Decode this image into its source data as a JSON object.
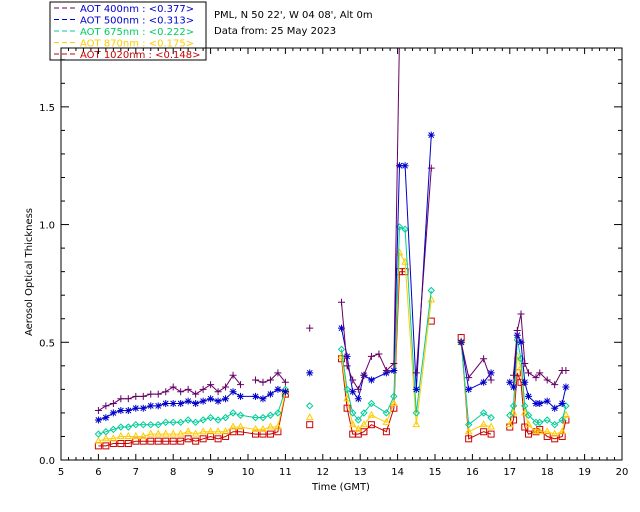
{
  "chart_data": {
    "type": "line",
    "title_lines": [
      "PML, N 50 22', W 04 08', Alt 0m",
      "Data from: 25 May 2023"
    ],
    "xlabel": "Time (GMT)",
    "ylabel": "Aerosol Optical Thickness",
    "xlim": [
      5,
      20
    ],
    "ylim": [
      0.0,
      1.75
    ],
    "x_ticks": [
      "5",
      "6",
      "7",
      "8",
      "9",
      "10",
      "11",
      "12",
      "13",
      "14",
      "15",
      "16",
      "17",
      "18",
      "19",
      "20"
    ],
    "y_ticks": [
      "0.0",
      "0.5",
      "1.0",
      "1.5"
    ],
    "legend_placement": "top-left, outside plot",
    "series": [
      {
        "name": "AOT  400nm",
        "mean": "<0.377>",
        "color": "#660066",
        "text_color": "#0000cc",
        "marker": "plus",
        "x": [
          6.0,
          6.2,
          6.4,
          6.6,
          6.8,
          7.0,
          7.2,
          7.4,
          7.6,
          7.8,
          8.0,
          8.2,
          8.4,
          8.6,
          8.8,
          9.0,
          9.2,
          9.4,
          9.6,
          9.8,
          10.0,
          10.2,
          10.4,
          10.6,
          10.8,
          11.0,
          11.65,
          12.5,
          12.65,
          12.8,
          12.95,
          13.1,
          13.3,
          13.5,
          13.7,
          13.9,
          14.05,
          14.2,
          14.5,
          14.9,
          15.7,
          15.9,
          16.3,
          16.5,
          17.0,
          17.1,
          17.2,
          17.3,
          17.4,
          17.5,
          17.7,
          17.8,
          18.0,
          18.2,
          18.4,
          18.5
        ],
        "y": [
          0.21,
          0.23,
          0.24,
          0.26,
          0.26,
          0.27,
          0.27,
          0.28,
          0.28,
          0.29,
          0.31,
          0.29,
          0.3,
          0.28,
          0.3,
          0.32,
          0.29,
          0.31,
          0.36,
          0.32,
          null,
          0.34,
          0.33,
          0.34,
          0.37,
          0.33,
          0.56,
          0.67,
          0.4,
          0.34,
          0.3,
          0.36,
          0.44,
          0.45,
          0.38,
          0.41,
          1.8,
          null,
          0.37,
          1.24,
          0.5,
          0.35,
          0.43,
          0.34,
          null,
          0.36,
          0.55,
          0.62,
          0.41,
          0.37,
          0.35,
          0.37,
          0.34,
          0.32,
          0.38,
          0.38
        ]
      },
      {
        "name": "AOT  500nm",
        "mean": "<0.313>",
        "color": "#0000cc",
        "text_color": "#0000cc",
        "marker": "asterisk",
        "x": [
          6.0,
          6.2,
          6.4,
          6.6,
          6.8,
          7.0,
          7.2,
          7.4,
          7.6,
          7.8,
          8.0,
          8.2,
          8.4,
          8.6,
          8.8,
          9.0,
          9.2,
          9.4,
          9.6,
          9.8,
          10.2,
          10.4,
          10.6,
          10.8,
          11.0,
          11.65,
          12.5,
          12.65,
          12.8,
          12.95,
          13.1,
          13.3,
          13.7,
          13.9,
          14.05,
          14.2,
          14.5,
          14.9,
          15.7,
          15.9,
          16.3,
          16.5,
          17.0,
          17.1,
          17.2,
          17.3,
          17.4,
          17.5,
          17.7,
          17.8,
          18.0,
          18.2,
          18.4,
          18.5
        ],
        "y": [
          0.17,
          0.18,
          0.2,
          0.21,
          0.21,
          0.22,
          0.22,
          0.23,
          0.23,
          0.24,
          0.24,
          0.24,
          0.25,
          0.24,
          0.25,
          0.26,
          0.25,
          0.26,
          0.29,
          0.27,
          0.27,
          0.26,
          0.28,
          0.3,
          0.29,
          0.37,
          0.56,
          0.44,
          0.29,
          0.26,
          0.36,
          0.34,
          0.37,
          0.38,
          1.25,
          1.25,
          0.3,
          1.38,
          0.5,
          0.3,
          0.33,
          0.37,
          0.33,
          0.31,
          0.53,
          0.5,
          0.33,
          0.27,
          0.24,
          0.24,
          0.25,
          0.22,
          0.24,
          0.31
        ]
      },
      {
        "name": "AOT  675nm",
        "mean": "<0.222>",
        "color": "#00cc99",
        "text_color": "#00cc66",
        "marker": "diamond",
        "x": [
          6.0,
          6.2,
          6.4,
          6.6,
          6.8,
          7.0,
          7.2,
          7.4,
          7.6,
          7.8,
          8.0,
          8.2,
          8.4,
          8.6,
          8.8,
          9.0,
          9.2,
          9.4,
          9.6,
          9.8,
          10.2,
          10.4,
          10.6,
          10.8,
          11.0,
          11.65,
          12.5,
          12.65,
          12.8,
          12.95,
          13.1,
          13.3,
          13.7,
          13.9,
          14.05,
          14.2,
          14.5,
          14.9,
          15.7,
          15.9,
          16.3,
          16.5,
          17.0,
          17.1,
          17.2,
          17.3,
          17.4,
          17.5,
          17.7,
          17.8,
          18.0,
          18.2,
          18.4,
          18.5
        ],
        "y": [
          0.11,
          0.12,
          0.13,
          0.14,
          0.14,
          0.15,
          0.15,
          0.15,
          0.15,
          0.16,
          0.16,
          0.16,
          0.17,
          0.16,
          0.17,
          0.18,
          0.17,
          0.18,
          0.2,
          0.19,
          0.18,
          0.18,
          0.19,
          0.2,
          0.3,
          0.23,
          0.47,
          0.3,
          0.2,
          0.17,
          0.2,
          0.24,
          0.2,
          0.27,
          0.99,
          0.98,
          0.2,
          0.72,
          0.5,
          0.15,
          0.2,
          0.18,
          0.19,
          0.23,
          0.51,
          0.43,
          0.23,
          0.19,
          0.16,
          0.16,
          0.17,
          0.15,
          0.17,
          0.23
        ]
      },
      {
        "name": "AOT  870nm",
        "mean": "<0.175>",
        "color": "#ffcc00",
        "text_color": "#ffcc00",
        "marker": "triangle",
        "x": [
          6.0,
          6.2,
          6.4,
          6.6,
          6.8,
          7.0,
          7.2,
          7.4,
          7.6,
          7.8,
          8.0,
          8.2,
          8.4,
          8.6,
          8.8,
          9.0,
          9.2,
          9.4,
          9.6,
          9.8,
          10.2,
          10.4,
          10.6,
          10.8,
          11.0,
          11.65,
          12.5,
          12.65,
          12.8,
          12.95,
          13.1,
          13.3,
          13.7,
          13.9,
          14.05,
          14.2,
          14.5,
          14.9,
          15.7,
          15.9,
          16.3,
          16.5,
          17.0,
          17.1,
          17.2,
          17.3,
          17.4,
          17.5,
          17.7,
          17.8,
          18.0,
          18.2,
          18.4,
          18.5
        ],
        "y": [
          0.08,
          0.09,
          0.09,
          0.1,
          0.1,
          0.1,
          0.1,
          0.11,
          0.11,
          0.11,
          0.11,
          0.11,
          0.12,
          0.11,
          0.12,
          0.12,
          0.12,
          0.12,
          0.14,
          0.14,
          0.13,
          0.13,
          0.14,
          0.14,
          0.29,
          0.18,
          0.44,
          0.26,
          0.15,
          0.13,
          0.15,
          0.19,
          0.16,
          0.24,
          0.88,
          0.84,
          0.15,
          0.68,
          0.5,
          0.12,
          0.15,
          0.14,
          0.15,
          0.2,
          0.44,
          0.39,
          0.2,
          0.15,
          0.12,
          0.12,
          0.12,
          0.11,
          0.12,
          0.19
        ]
      },
      {
        "name": "AOT 1020nm",
        "mean": "<0.148>",
        "color": "#cc0000",
        "text_color": "#cc0000",
        "marker": "square",
        "x": [
          6.0,
          6.2,
          6.4,
          6.6,
          6.8,
          7.0,
          7.2,
          7.4,
          7.6,
          7.8,
          8.0,
          8.2,
          8.4,
          8.6,
          8.8,
          9.0,
          9.2,
          9.4,
          9.6,
          9.8,
          10.2,
          10.4,
          10.6,
          10.8,
          11.0,
          11.65,
          12.5,
          12.65,
          12.8,
          12.95,
          13.1,
          13.3,
          13.7,
          13.9,
          14.05,
          14.2,
          14.9,
          15.7,
          15.9,
          16.3,
          16.5,
          17.0,
          17.1,
          17.2,
          17.3,
          17.4,
          17.5,
          17.7,
          17.8,
          18.0,
          18.2,
          18.4,
          18.5
        ],
        "y": [
          0.06,
          0.06,
          0.07,
          0.07,
          0.07,
          0.08,
          0.08,
          0.08,
          0.08,
          0.08,
          0.08,
          0.08,
          0.09,
          0.08,
          0.09,
          0.1,
          0.09,
          0.1,
          0.12,
          0.12,
          0.11,
          0.11,
          0.11,
          0.12,
          0.28,
          0.15,
          0.43,
          0.22,
          0.11,
          0.11,
          0.12,
          0.15,
          0.12,
          0.22,
          0.8,
          0.8,
          0.59,
          0.52,
          0.09,
          0.12,
          0.11,
          0.14,
          0.17,
          0.37,
          0.33,
          0.14,
          0.11,
          0.12,
          0.13,
          0.1,
          0.09,
          0.1,
          0.17
        ]
      }
    ]
  }
}
